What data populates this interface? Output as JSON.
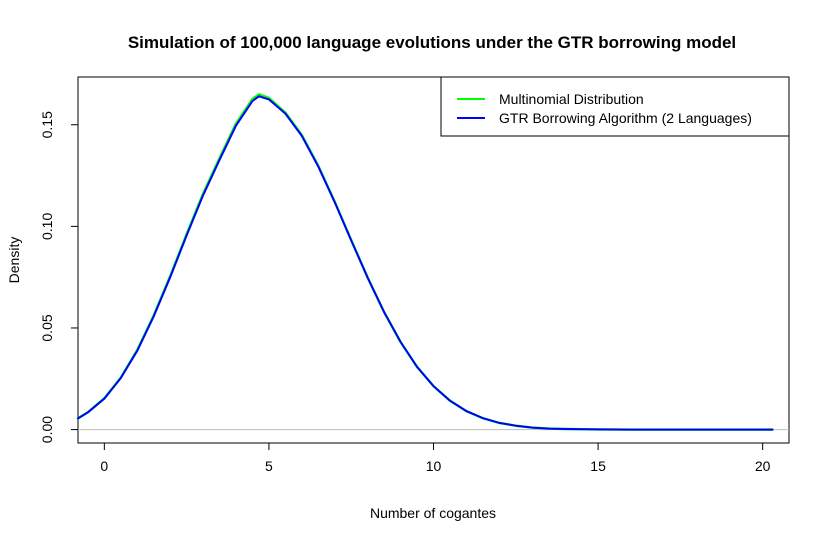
{
  "chart_data": {
    "type": "line",
    "title": "Simulation of 100,000 language evolutions under the GTR borrowing model",
    "xlabel": "Number of cogantes",
    "ylabel": "Density",
    "xlim": [
      -0.8,
      20.8
    ],
    "ylim": [
      -0.0066,
      0.1735
    ],
    "x_ticks": [
      0,
      5,
      10,
      15,
      20
    ],
    "y_ticks": [
      0.0,
      0.05,
      0.1,
      0.15
    ],
    "x_tick_labels": [
      "0",
      "5",
      "10",
      "15",
      "20"
    ],
    "y_tick_labels": [
      "0.00",
      "0.05",
      "0.10",
      "0.15"
    ],
    "reference_line": {
      "y": 0,
      "color": "#bebebe"
    },
    "legend": {
      "placement": "top-right",
      "box": true
    },
    "grid": false,
    "series": [
      {
        "name": "Multinomial Distribution",
        "color": "#00ff00",
        "x": [
          -0.8,
          -0.5,
          0,
          0.5,
          1,
          1.5,
          2,
          2.5,
          3,
          3.5,
          4,
          4.5,
          4.7,
          5,
          5.5,
          6,
          6.5,
          7,
          7.5,
          8,
          8.5,
          9,
          9.5,
          10,
          10.5,
          11,
          11.5,
          12,
          12.5,
          13,
          13.5,
          14,
          15,
          16,
          17,
          18,
          19,
          20.3
        ],
        "y": [
          0.0055,
          0.0085,
          0.0154,
          0.0256,
          0.0392,
          0.0562,
          0.0756,
          0.0962,
          0.1161,
          0.1336,
          0.1506,
          0.1627,
          0.165,
          0.1632,
          0.156,
          0.145,
          0.1298,
          0.1121,
          0.0933,
          0.0748,
          0.0578,
          0.0431,
          0.0309,
          0.0214,
          0.0142,
          0.0091,
          0.0056,
          0.0033,
          0.0019,
          0.001,
          0.0005,
          0.0003,
          0.0001,
          0.0,
          0.0,
          0.0,
          0.0,
          0.0
        ]
      },
      {
        "name": "GTR Borrowing Algorithm (2 Languages)",
        "color": "#0000ff",
        "x": [
          -0.8,
          -0.5,
          0,
          0.5,
          1,
          1.5,
          2,
          2.5,
          3,
          3.5,
          4,
          4.5,
          4.7,
          5,
          5.5,
          6,
          6.5,
          7,
          7.5,
          8,
          8.5,
          9,
          9.5,
          10,
          10.5,
          11,
          11.5,
          12,
          12.5,
          13,
          13.5,
          14,
          15,
          16,
          17,
          18,
          19,
          20.3
        ],
        "y": [
          0.0055,
          0.0085,
          0.0152,
          0.0254,
          0.0388,
          0.0557,
          0.075,
          0.0955,
          0.1153,
          0.1327,
          0.1496,
          0.1617,
          0.164,
          0.1625,
          0.1555,
          0.1445,
          0.1294,
          0.1118,
          0.0931,
          0.0747,
          0.0578,
          0.0431,
          0.0309,
          0.0214,
          0.0142,
          0.0091,
          0.0056,
          0.0033,
          0.0019,
          0.001,
          0.0005,
          0.0003,
          0.0001,
          0.0,
          0.0,
          0.0,
          0.0,
          0.0
        ]
      }
    ]
  }
}
